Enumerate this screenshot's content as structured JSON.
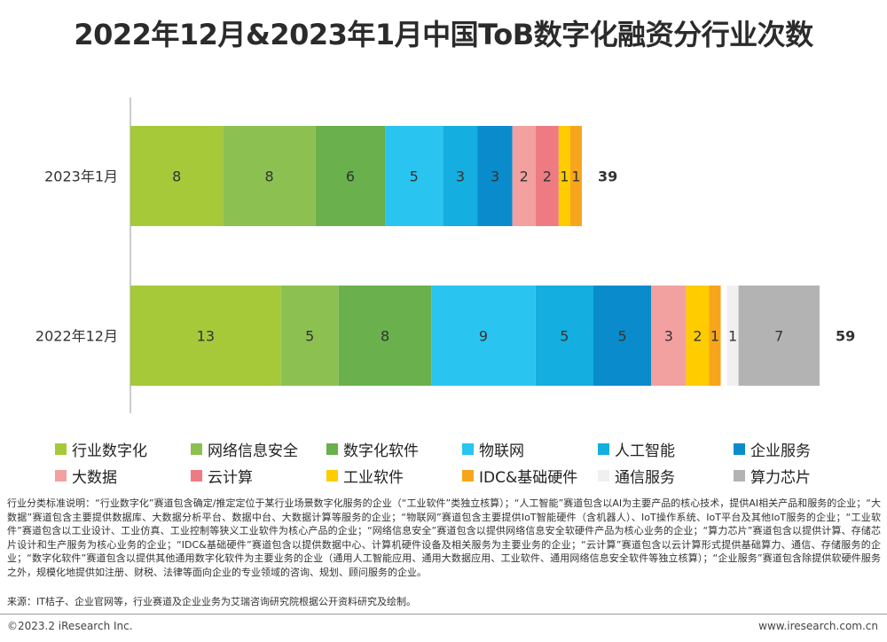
{
  "title": "2022年12月&2023年1月中国ToB数字化融资分行业次数",
  "chart_data": {
    "type": "bar",
    "orientation": "horizontal",
    "stacked": true,
    "categories": [
      "2023年1月",
      "2022年12月"
    ],
    "series": [
      {
        "name": "行业数字化",
        "color": "#a6c93a",
        "values": [
          8,
          13
        ]
      },
      {
        "name": "网络信息安全",
        "color": "#8cc152",
        "values": [
          8,
          5
        ]
      },
      {
        "name": "数字化软件",
        "color": "#6ab04c",
        "values": [
          6,
          8
        ]
      },
      {
        "name": "物联网",
        "color": "#2ac4f0",
        "values": [
          5,
          9
        ]
      },
      {
        "name": "人工智能",
        "color": "#14aee0",
        "values": [
          3,
          5
        ]
      },
      {
        "name": "企业服务",
        "color": "#0a8ccc",
        "values": [
          3,
          5
        ]
      },
      {
        "name": "大数据",
        "color": "#f2a0a0",
        "values": [
          2,
          3
        ]
      },
      {
        "name": "云计算",
        "color": "#ee7b82",
        "values": [
          2,
          0
        ]
      },
      {
        "name": "工业软件",
        "color": "#ffcc00",
        "values": [
          1,
          2
        ]
      },
      {
        "name": "IDC&基础硬件",
        "color": "#f7a51c",
        "values": [
          1,
          1
        ]
      },
      {
        "name": "通信服务",
        "color": "#f0f0f0",
        "values": [
          0,
          1
        ]
      },
      {
        "name": "算力芯片",
        "color": "#b3b3b3",
        "values": [
          0,
          7
        ]
      }
    ],
    "totals": [
      39,
      59
    ],
    "xlim": [
      0,
      60
    ],
    "legend_position": "bottom",
    "grid": false
  },
  "notes": "行业分类标准说明：“行业数字化”赛道包含确定/推定定位于某行业场景数字化服务的企业（“工业软件”类独立核算）；“人工智能”赛道包含以AI为主要产品的核心技术，提供AI相关产品和服务的企业；“大数据”赛道包含主要提供数据库、大数据分析平台、数据中台、大数据计算等服务的企业；“物联网”赛道包含主要提供IoT智能硬件（含机器人）、IoT操作系统、IoT平台及其他IoT服务的企业；“工业软件”赛道包含以工业设计、工业仿真、工业控制等狭义工业软件为核心产品的企业；“网络信息安全”赛道包含以提供网络信息安全软硬件产品为核心业务的企业；“算力芯片”赛道包含以提供计算、存储芯片设计和生产服务为核心业务的企业；“IDC&基础硬件”赛道包含以提供数据中心、计算机硬件设备及相关服务为主要业务的企业；“云计算”赛道包含以云计算形式提供基础算力、通信、存储服务的企业；“数字化软件”赛道包含以提供其他通用数字化软件为主要业务的企业（通用人工智能应用、通用大数据应用、工业软件、通用网络信息安全软件等独立核算）；“企业服务”赛道包含除提供软硬件服务之外，规模化地提供如注册、财税、法律等面向企业的专业领域的咨询、规划、顾问服务的企业。",
  "source": "来源：IT桔子、企业官网等，行业赛道及企业业务为艾瑞咨询研究院根据公开资料研究及绘制。",
  "footer": {
    "copyright": "©2023.2 iResearch Inc.",
    "website": "www.iresearch.com.cn"
  }
}
